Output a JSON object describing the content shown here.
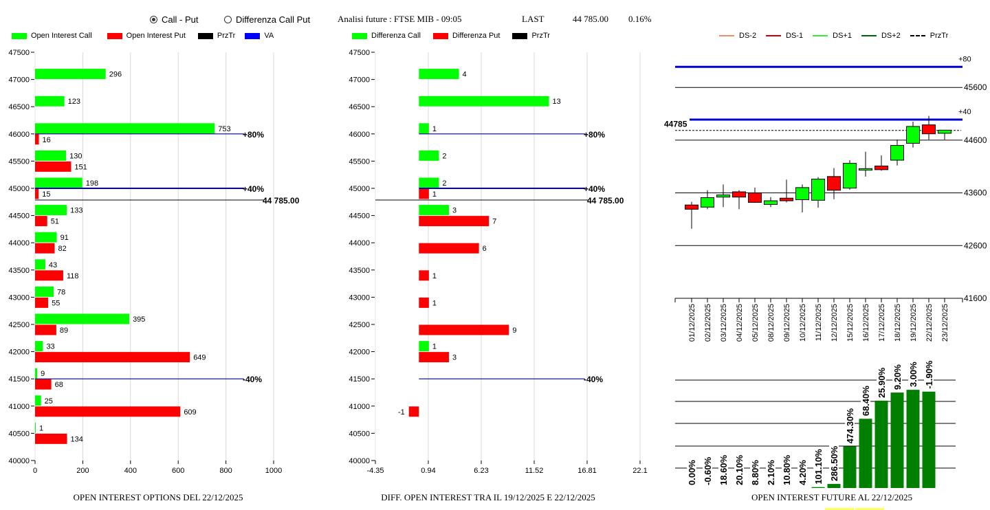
{
  "header": {
    "radio_options": [
      {
        "label": "Call - Put",
        "checked": true
      },
      {
        "label": "Differenza Call Put",
        "checked": false
      }
    ],
    "analysis_label": "Analisi future : FTSE MIB - 09:05",
    "last_label": "LAST",
    "last_value": "44 785.00",
    "last_change": "0.16%"
  },
  "colors": {
    "call": "#00ff00",
    "put": "#ff0000",
    "prztr": "#000000",
    "va": "#0000ff",
    "va_line": "#000080",
    "ds_minus2": "#e8906a",
    "ds_minus1": "#cc0000",
    "ds_plus1": "#33ee33",
    "ds_plus2": "#006600",
    "future_bar": "#007f00",
    "grid": "#d8d8d8"
  },
  "legends": {
    "left": [
      {
        "label": "Open Interest Call",
        "color": "#00ff00"
      },
      {
        "label": "Open Interest Put",
        "color": "#ff0000"
      },
      {
        "label": "PrzTr",
        "color": "#000000"
      },
      {
        "label": "VA",
        "color": "#0000ff"
      }
    ],
    "middle": [
      {
        "label": "Differenza Call",
        "color": "#00ff00"
      },
      {
        "label": "Differenza Put",
        "color": "#ff0000"
      },
      {
        "label": "PrzTr",
        "color": "#000000"
      }
    ],
    "right": [
      {
        "label": "DS-2",
        "color": "#e8906a",
        "dashed": false
      },
      {
        "label": "DS-1",
        "color": "#cc0000",
        "dashed": false
      },
      {
        "label": "DS+1",
        "color": "#33ee33",
        "dashed": false
      },
      {
        "label": "DS+2",
        "color": "#006600",
        "dashed": false
      },
      {
        "label": "PrzTr",
        "color": "#000000",
        "dashed": true
      }
    ]
  },
  "chart_data": [
    {
      "type": "bar",
      "orientation": "horizontal",
      "title": "OPEN INTEREST OPTIONS DEL 22/12/2025",
      "categories": [
        47000,
        46500,
        46000,
        45500,
        45000,
        44500,
        44000,
        43500,
        43000,
        42500,
        42000,
        41500,
        41000,
        40500
      ],
      "series": [
        {
          "name": "Open Interest Call",
          "values": [
            296,
            123,
            753,
            130,
            198,
            133,
            91,
            43,
            78,
            395,
            33,
            9,
            25,
            1
          ]
        },
        {
          "name": "Open Interest Put",
          "values": [
            null,
            null,
            16,
            151,
            15,
            51,
            82,
            118,
            55,
            89,
            649,
            68,
            609,
            134
          ]
        }
      ],
      "xlim": [
        0,
        1000
      ],
      "x_ticks": [
        "0",
        "200",
        "400",
        "600",
        "800",
        "1000"
      ],
      "ylim": [
        40000,
        47500
      ],
      "y_ticks": [
        "47500",
        "47000",
        "46500",
        "46000",
        "45500",
        "45000",
        "44500",
        "44000",
        "43500",
        "43000",
        "42500",
        "42000",
        "41500",
        "41000",
        "40500",
        "40000"
      ],
      "grid": "vertical",
      "reference_lines": [
        {
          "label": "+80%",
          "y": 46000,
          "thick": false
        },
        {
          "label": "+40%",
          "y": 45000,
          "thick": true
        },
        {
          "label": "-40%",
          "y": 41500,
          "thick": false
        }
      ],
      "price_line": {
        "label": "44 785.00",
        "y": 44785
      }
    },
    {
      "type": "bar",
      "orientation": "horizontal",
      "title": "DIFF. OPEN INTEREST TRA IL 19/12/2025 E 22/12/2025",
      "categories": [
        47000,
        46500,
        46000,
        45500,
        45000,
        44500,
        44000,
        43500,
        43000,
        42500,
        42000,
        41500,
        41000,
        40500
      ],
      "series": [
        {
          "name": "Differenza Call",
          "values": [
            4,
            13,
            1,
            2,
            2,
            3,
            null,
            null,
            null,
            null,
            1,
            null,
            null,
            null
          ]
        },
        {
          "name": "Differenza Put",
          "values": [
            null,
            null,
            null,
            null,
            1,
            7,
            6,
            1,
            1,
            9,
            3,
            null,
            -1,
            null
          ]
        }
      ],
      "xlim": [
        -4.35,
        22.1
      ],
      "x_ticks": [
        "-4.35",
        "0.94",
        "6.23",
        "11.52",
        "16.81",
        "22.1"
      ],
      "ylim": [
        40000,
        47500
      ],
      "y_ticks": [
        "47500",
        "47000",
        "46500",
        "46000",
        "45500",
        "45000",
        "44500",
        "44000",
        "43500",
        "43000",
        "42500",
        "42000",
        "41500",
        "41000",
        "40500",
        "40000"
      ],
      "grid": "vertical",
      "reference_lines": [
        {
          "label": "+80%",
          "y": 46000,
          "thick": false
        },
        {
          "label": "+40%",
          "y": 45000,
          "thick": true
        },
        {
          "label": "-40%",
          "y": 41500,
          "thick": false
        }
      ],
      "price_line": {
        "label": "44 785.00",
        "y": 44785
      }
    },
    {
      "type": "candlestick",
      "title": "",
      "categories": [
        "01/12/2025",
        "02/12/2025",
        "03/12/2025",
        "04/12/2025",
        "05/12/2025",
        "08/12/2025",
        "09/12/2025",
        "10/12/2025",
        "11/12/2025",
        "12/12/2025",
        "15/12/2025",
        "16/12/2025",
        "17/12/2025",
        "18/12/2025",
        "19/12/2025",
        "22/12/2025",
        "23/12/2025"
      ],
      "ohlc": [
        [
          43370,
          43430,
          42920,
          43290
        ],
        [
          43330,
          43650,
          43290,
          43510
        ],
        [
          43520,
          43760,
          43330,
          43560
        ],
        [
          43620,
          43650,
          43290,
          43520
        ],
        [
          43600,
          43700,
          43410,
          43420
        ],
        [
          43380,
          43520,
          43330,
          43450
        ],
        [
          43500,
          43850,
          43420,
          43450
        ],
        [
          43470,
          43760,
          43230,
          43700
        ],
        [
          43460,
          43900,
          43320,
          43860
        ],
        [
          43910,
          44070,
          43480,
          43650
        ],
        [
          43690,
          44220,
          43660,
          44160
        ],
        [
          44030,
          44380,
          43910,
          44060
        ],
        [
          44110,
          44310,
          44020,
          44040
        ],
        [
          44220,
          44610,
          44120,
          44500
        ],
        [
          44540,
          44950,
          44460,
          44860
        ],
        [
          44890,
          45060,
          44610,
          44720
        ],
        [
          44730,
          44790,
          44610,
          44790
        ]
      ],
      "y_ticks": [
        "45600",
        "44600",
        "43600",
        "42600",
        "41600"
      ],
      "ylim": [
        41600,
        46000
      ],
      "price_line": {
        "label": "44785",
        "y": 44785
      },
      "va_lines": [
        {
          "label": "+80",
          "y": 45990
        },
        {
          "label": "+40",
          "y": 44990
        }
      ]
    },
    {
      "type": "bar",
      "title": "OPEN INTEREST FUTURE AL 22/12/2025",
      "categories": [
        "01/12/2025",
        "02/12/2025",
        "03/12/2025",
        "04/12/2025",
        "05/12/2025",
        "08/12/2025",
        "09/12/2025",
        "10/12/2025",
        "11/12/2025",
        "12/12/2025",
        "15/12/2025",
        "16/12/2025",
        "17/12/2025",
        "18/12/2025",
        "19/12/2025",
        "22/12/2025",
        "23/12/2025"
      ],
      "values": [
        0,
        0,
        0,
        0,
        0,
        0,
        0,
        0,
        0.2,
        0.9,
        9.2,
        15.3,
        19.3,
        21.1,
        21.7,
        21.3,
        null
      ],
      "labels": [
        "0.00%",
        "-0.60%",
        "18.60%",
        "20.10%",
        "8.80%",
        "2.10%",
        "10.80%",
        "4.20%",
        "101.10%",
        "286.50%",
        "474.30%",
        "68.40%",
        "25.90%",
        "9.20%",
        "3.00%",
        "-1.90%"
      ],
      "ylim": [
        0,
        24
      ],
      "grid": "horizontal"
    }
  ]
}
